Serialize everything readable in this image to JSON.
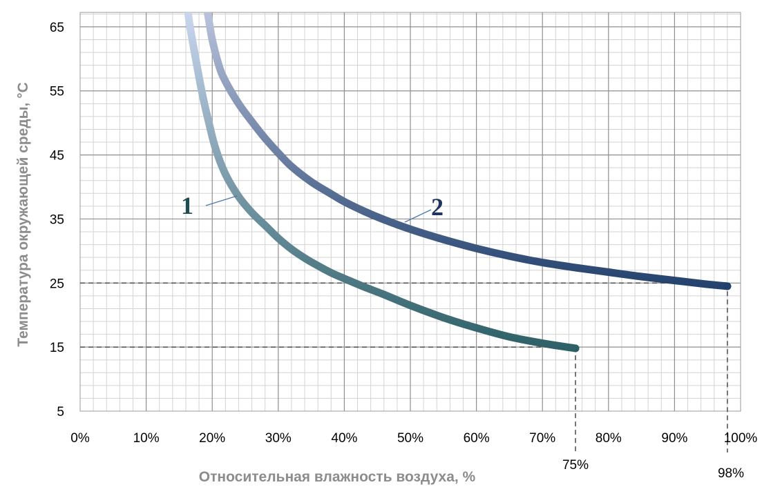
{
  "chart_data": {
    "type": "line",
    "xlabel": "Относительная влажность воздуха, %",
    "ylabel": "Температура окружающей среды, °С",
    "xlim": [
      0,
      100
    ],
    "ylim": [
      5,
      65
    ],
    "x_ticks": [
      "0%",
      "10%",
      "20%",
      "30%",
      "40%",
      "50%",
      "60%",
      "70%",
      "80%",
      "90%",
      "100%"
    ],
    "y_ticks": [
      "5",
      "15",
      "25",
      "35",
      "45",
      "55",
      "65"
    ],
    "grid": true,
    "series": [
      {
        "name": "1",
        "color_start": "#c9d6ee",
        "color_end": "#2c5f66",
        "x": [
          15.8,
          16.5,
          17.5,
          18.5,
          19.5,
          20.5,
          22,
          24,
          26,
          28,
          30,
          32,
          34,
          36,
          38,
          40,
          43,
          46,
          50,
          55,
          60,
          65,
          70,
          75
        ],
        "y": [
          72,
          66,
          60,
          54.5,
          50,
          46,
          42,
          38.5,
          36,
          34,
          32,
          30.3,
          28.9,
          27.7,
          26.6,
          25.7,
          24.4,
          23.2,
          21.5,
          19.6,
          18,
          16.6,
          15.6,
          14.8
        ]
      },
      {
        "name": "2",
        "color_start": "#b9c3dc",
        "color_end": "#22406c",
        "x": [
          18.5,
          19,
          19.5,
          20,
          21,
          22,
          24,
          26,
          28,
          30,
          32,
          35,
          38,
          40,
          43,
          46,
          50,
          55,
          60,
          65,
          70,
          75,
          80,
          85,
          90,
          95,
          98
        ],
        "y": [
          72,
          69,
          66,
          63,
          59,
          56.5,
          53,
          50.2,
          47.6,
          45.3,
          43.2,
          40.8,
          38.9,
          37.7,
          36.2,
          34.9,
          33.4,
          31.8,
          30.4,
          29.2,
          28.2,
          27.4,
          26.7,
          26,
          25.4,
          24.8,
          24.5
        ]
      }
    ],
    "reference_lines": [
      {
        "x": 75,
        "y": 15,
        "label": "75%"
      },
      {
        "x": 98,
        "y": 25,
        "label": "98%"
      }
    ]
  }
}
